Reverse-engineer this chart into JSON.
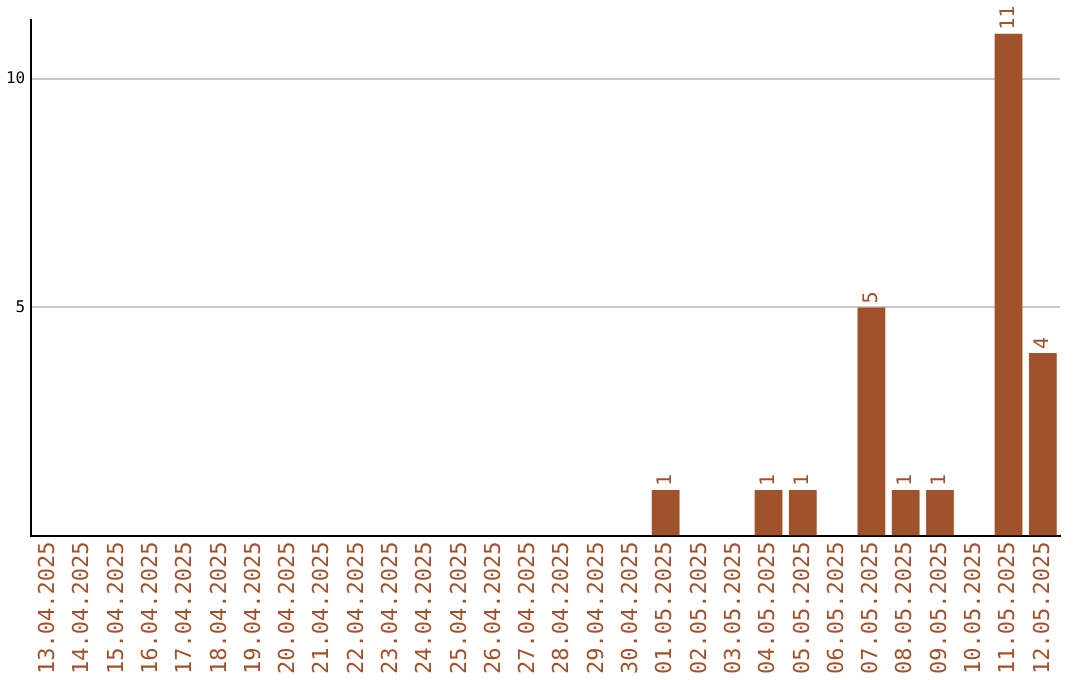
{
  "chart_data": {
    "type": "bar",
    "categories": [
      "13.04.2025",
      "14.04.2025",
      "15.04.2025",
      "16.04.2025",
      "17.04.2025",
      "18.04.2025",
      "19.04.2025",
      "20.04.2025",
      "21.04.2025",
      "22.04.2025",
      "23.04.2025",
      "24.04.2025",
      "25.04.2025",
      "26.04.2025",
      "27.04.2025",
      "28.04.2025",
      "29.04.2025",
      "30.04.2025",
      "01.05.2025",
      "02.05.2025",
      "03.05.2025",
      "04.05.2025",
      "05.05.2025",
      "06.05.2025",
      "07.05.2025",
      "08.05.2025",
      "09.05.2025",
      "10.05.2025",
      "11.05.2025",
      "12.05.2025"
    ],
    "values": [
      0,
      0,
      0,
      0,
      0,
      0,
      0,
      0,
      0,
      0,
      0,
      0,
      0,
      0,
      0,
      0,
      0,
      0,
      1,
      0,
      0,
      1,
      1,
      0,
      5,
      1,
      1,
      0,
      11,
      4
    ],
    "value_labels": [
      null,
      null,
      null,
      null,
      null,
      null,
      null,
      null,
      null,
      null,
      null,
      null,
      null,
      null,
      null,
      null,
      null,
      null,
      "1",
      null,
      null,
      "1",
      "1",
      null,
      "5",
      "1",
      "1",
      null,
      "11",
      "4"
    ],
    "color": "#a0522d",
    "ylim": [
      0,
      11.3
    ],
    "yticks": [
      5,
      10
    ],
    "grid": "y"
  }
}
